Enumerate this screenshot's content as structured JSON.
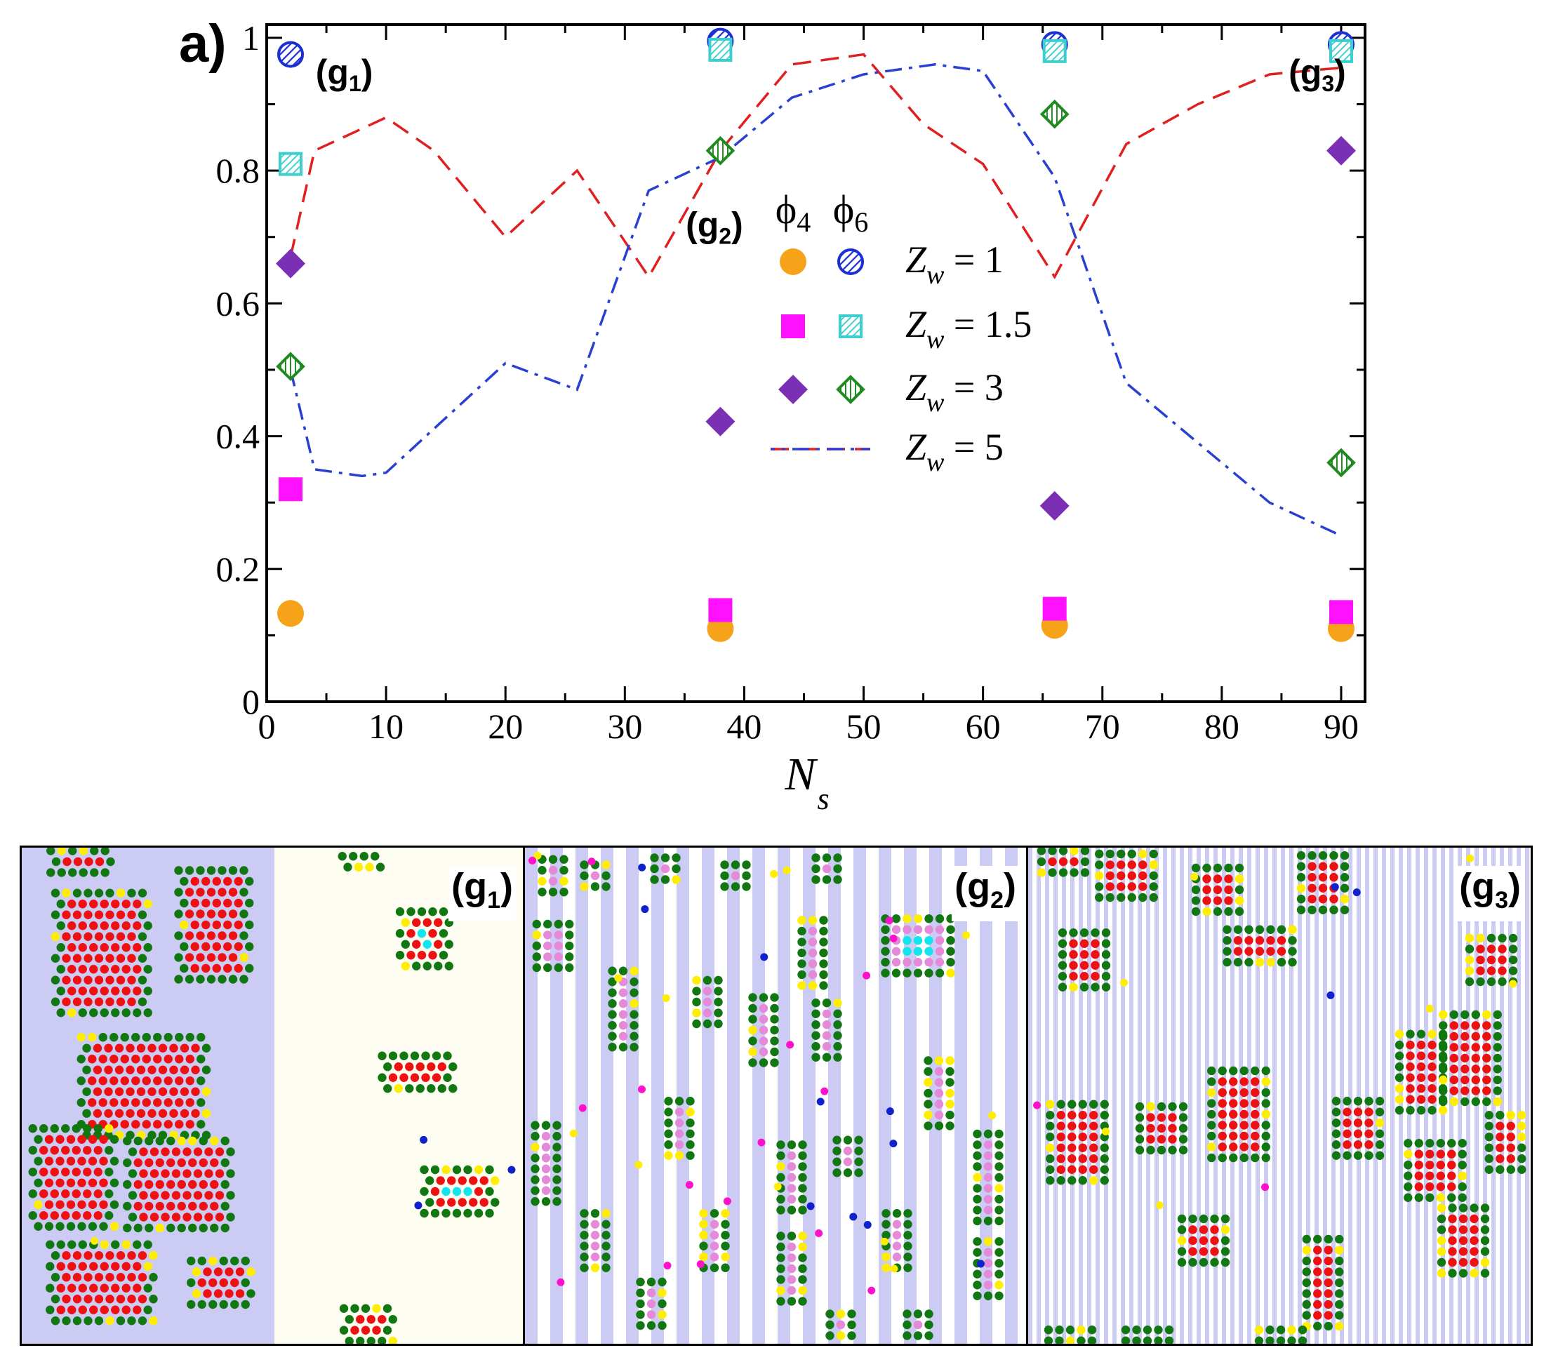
{
  "panel_letter": "a)",
  "chart_data": {
    "type": "scatter",
    "xlabel_main": "N",
    "xlabel_sub": "s",
    "ylabel": "",
    "xlim": [
      0,
      92
    ],
    "ylim": [
      0,
      1.02
    ],
    "x_ticks": [
      0,
      10,
      20,
      30,
      40,
      50,
      60,
      70,
      80,
      90
    ],
    "x_tick_labels": [
      "0",
      "10",
      "20",
      "30",
      "40",
      "50",
      "60",
      "70",
      "80",
      "90"
    ],
    "y_ticks": [
      0,
      0.2,
      0.4,
      0.6,
      0.8,
      1
    ],
    "y_tick_labels": [
      "0",
      "0.2",
      "0.4",
      "0.6",
      "0.8",
      "1"
    ],
    "legend_col_headers": [
      "ϕ4",
      "ϕ6"
    ],
    "legend_rows": [
      {
        "label": "Z",
        "sub": "w",
        "value": " = 1"
      },
      {
        "label": "Z",
        "sub": "w",
        "value": " = 1.5"
      },
      {
        "label": "Z",
        "sub": "w",
        "value": " = 3"
      },
      {
        "label": "Z",
        "sub": "w",
        "value": " = 5"
      }
    ],
    "series": [
      {
        "name": "phi4 Zw=1",
        "marker": "circle",
        "color": "#f7a319",
        "x": [
          2,
          38,
          66,
          90
        ],
        "y": [
          0.133,
          0.11,
          0.115,
          0.11
        ]
      },
      {
        "name": "phi6 Zw=1",
        "marker": "circle-hatched",
        "color": "#1a2fd4",
        "x": [
          2,
          38,
          66,
          90
        ],
        "y": [
          0.975,
          0.995,
          0.99,
          0.99
        ]
      },
      {
        "name": "phi4 Zw=1.5",
        "marker": "square",
        "color": "#ff10ff",
        "x": [
          2,
          38,
          66,
          90
        ],
        "y": [
          0.32,
          0.138,
          0.14,
          0.135
        ]
      },
      {
        "name": "phi6 Zw=1.5",
        "marker": "square-hatched",
        "color": "#3dcfcf",
        "x": [
          2,
          38,
          66,
          90
        ],
        "y": [
          0.81,
          0.982,
          0.98,
          0.98
        ]
      },
      {
        "name": "phi4 Zw=3",
        "marker": "diamond",
        "color": "#7b2fb5",
        "x": [
          2,
          38,
          66,
          90
        ],
        "y": [
          0.66,
          0.422,
          0.295,
          0.83
        ]
      },
      {
        "name": "phi6 Zw=3",
        "marker": "diamond-hatched",
        "color": "#1f8a1f",
        "x": [
          2,
          38,
          66,
          90
        ],
        "y": [
          0.505,
          0.83,
          0.885,
          0.36
        ]
      },
      {
        "name": "phi4 Zw=5",
        "marker": "dashed-line",
        "color": "#e02020",
        "x": [
          2,
          4,
          10,
          14,
          20,
          26,
          32,
          38,
          44,
          50,
          55,
          60,
          66,
          72,
          78,
          84,
          90
        ],
        "y": [
          0.67,
          0.83,
          0.88,
          0.83,
          0.7,
          0.8,
          0.64,
          0.83,
          0.96,
          0.975,
          0.87,
          0.81,
          0.64,
          0.84,
          0.9,
          0.945,
          0.955
        ]
      },
      {
        "name": "phi6 Zw=5",
        "marker": "dashdot-line",
        "color": "#2a40d0",
        "x": [
          2,
          4,
          8,
          10,
          20,
          26,
          32,
          38,
          44,
          50,
          56,
          60,
          66,
          72,
          78,
          84,
          90
        ],
        "y": [
          0.5,
          0.35,
          0.34,
          0.345,
          0.51,
          0.47,
          0.77,
          0.82,
          0.91,
          0.945,
          0.96,
          0.95,
          0.79,
          0.48,
          0.39,
          0.3,
          0.25
        ]
      }
    ],
    "annotations": [
      {
        "text": "(g",
        "sub": "1",
        "close": ")",
        "x": 6.5,
        "y": 0.93
      },
      {
        "text": "(g",
        "sub": "2",
        "close": ")",
        "x": 37.5,
        "y": 0.7
      },
      {
        "text": "(g",
        "sub": "3",
        "close": ")",
        "x": 88,
        "y": 0.93
      }
    ]
  },
  "snapshots": [
    {
      "label": "(g",
      "sub": "1",
      "close": ")"
    },
    {
      "label": "(g",
      "sub": "2",
      "close": ")"
    },
    {
      "label": "(g",
      "sub": "3",
      "close": ")"
    }
  ],
  "colors": {
    "red": "#ee1111",
    "green": "#117711",
    "yellow": "#ffee00",
    "cyan": "#11e5ee",
    "pink": "#e58ad9",
    "magenta": "#ff11cc",
    "blue": "#1122cc",
    "stripe": "#cccbf3",
    "beige": "#fdfdf2"
  }
}
